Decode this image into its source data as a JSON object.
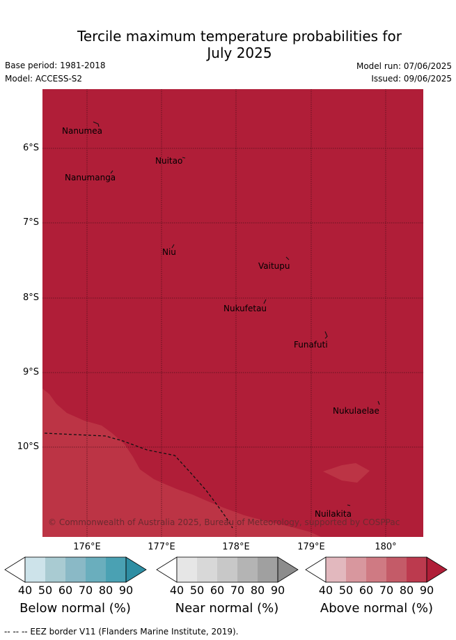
{
  "title_line1": "Tercile maximum temperature probabilities for",
  "title_line2": "July 2025",
  "base_period": "Base period: 1981-2018",
  "model": "Model: ACCESS-S2",
  "model_run": "Model run: 07/06/2025",
  "issued": "Issued: 09/06/2025",
  "lat_labels": [
    "6°S",
    "7°S",
    "8°S",
    "9°S",
    "10°S"
  ],
  "lon_labels": [
    "176°E",
    "177°E",
    "178°E",
    "179°E",
    "180°"
  ],
  "places": [
    "Nanumea",
    "Nuitao",
    "Nanumanga",
    "Niu",
    "Vaitupu",
    "Nukufetau",
    "Funafuti",
    "Nukulaelae",
    "Nuilakita"
  ],
  "copyright": "© Commonwealth of Australia 2025, Bureau of Meteorology, supported by COSPPac",
  "colorbars": [
    {
      "label": "Below normal (%)",
      "ticks": [
        "40",
        "50",
        "60",
        "70",
        "80",
        "90"
      ],
      "colors": [
        "#ffffff",
        "#cde3ea",
        "#a9cbd2",
        "#8ab9c6",
        "#6aaebd",
        "#4aa1b3",
        "#2e8ea3"
      ]
    },
    {
      "label": "Near normal (%)",
      "ticks": [
        "40",
        "50",
        "60",
        "70",
        "80",
        "90"
      ],
      "colors": [
        "#ffffff",
        "#e6e6e6",
        "#d8d8d8",
        "#c8c8c8",
        "#b4b4b4",
        "#a0a0a0",
        "#8c8c8c"
      ]
    },
    {
      "label": "Above normal (%)",
      "ticks": [
        "40",
        "50",
        "60",
        "70",
        "80",
        "90"
      ],
      "colors": [
        "#ffffff",
        "#e2b8be",
        "#d8979e",
        "#cf7a83",
        "#c45b68",
        "#bc3a4e",
        "#b01e38"
      ]
    }
  ],
  "footer": "-- -- -- EEZ border V11 (Flanders Marine Institute, 2019)."
}
